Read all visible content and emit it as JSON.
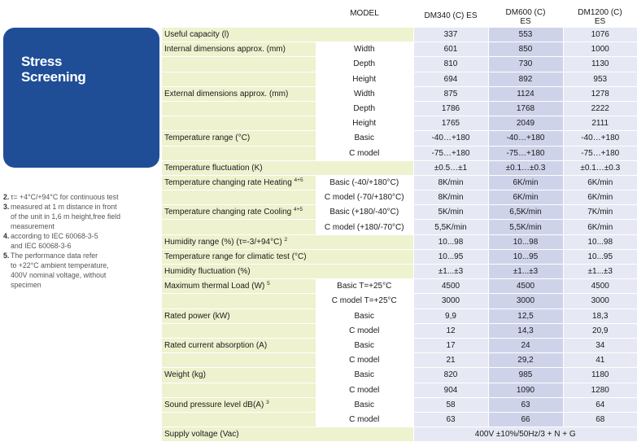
{
  "badge": {
    "title": "Stress\nScreening"
  },
  "header": {
    "model": "MODEL",
    "models": [
      "DM340 (C) ES",
      "DM600 (C)\nES",
      "DM1200 (C)\nES"
    ]
  },
  "notes": [
    {
      "num": "2.",
      "text": "τ= +4°C/+94°C for continuous test"
    },
    {
      "num": "3.",
      "text": "measured at 1 m distance in front\nof the unit in 1,6 m height,free field\nmeasurement"
    },
    {
      "num": "4.",
      "text": "according to IEC 60068-3-5\nand IEC 60068-3-6"
    },
    {
      "num": "5.",
      "text": "The performance data refer\nto +22°C ambient temperature,\n400V nominal voltage, without\nspecimen"
    }
  ],
  "rows": [
    {
      "label": "Useful capacity (l)",
      "sub": "",
      "values": [
        "337",
        "553",
        "1076"
      ]
    },
    {
      "label": "Internal dimensions approx. (mm)",
      "sub": "Width",
      "values": [
        "601",
        "850",
        "1000"
      ]
    },
    {
      "label": "",
      "sub": "Depth",
      "values": [
        "810",
        "730",
        "1130"
      ]
    },
    {
      "label": "",
      "sub": "Height",
      "values": [
        "694",
        "892",
        "953"
      ]
    },
    {
      "label": "External dimensions approx. (mm)",
      "sub": "Width",
      "values": [
        "875",
        "1124",
        "1278"
      ]
    },
    {
      "label": "",
      "sub": "Depth",
      "values": [
        "1786",
        "1768",
        "2222"
      ]
    },
    {
      "label": "",
      "sub": "Height",
      "values": [
        "1765",
        "2049",
        "2111"
      ]
    },
    {
      "label": "Temperature range (°C)",
      "sub": "Basic",
      "values": [
        "-40…+180",
        "-40…+180",
        "-40…+180"
      ]
    },
    {
      "label": "",
      "sub": "C model",
      "values": [
        "-75…+180",
        "-75…+180",
        "-75…+180"
      ]
    },
    {
      "label": "Temperature fluctuation (K)",
      "sub": "",
      "values": [
        "±0.5…±1",
        "±0.1…±0.3",
        "±0.1…±0.3"
      ]
    },
    {
      "label": "Temperature changing rate Heating",
      "sup": "4+5",
      "sub": "Basic (-40/+180°C)",
      "values": [
        "8K/min",
        "6K/min",
        "6K/min"
      ]
    },
    {
      "label": "",
      "sub": "C model (-70/+180°C)",
      "values": [
        "8K/min",
        "6K/min",
        "6K/min"
      ]
    },
    {
      "label": "Temperature changing rate Cooling",
      "sup": "4+5",
      "sub": "Basic (+180/-40°C)",
      "values": [
        "5K/min",
        "6,5K/min",
        "7K/min"
      ]
    },
    {
      "label": "",
      "sub": "C model (+180/-70°C)",
      "values": [
        "5,5K/min",
        "5,5K/min",
        "6K/min"
      ]
    },
    {
      "label": "Humidity range (%) (τ=-3/+94°C)",
      "sup": "2",
      "sub": "",
      "values": [
        "10...98",
        "10...98",
        "10...98"
      ]
    },
    {
      "label": "Temperature range for climatic test (°C)",
      "sub": "",
      "values": [
        "10...95",
        "10...95",
        "10...95"
      ]
    },
    {
      "label": "Humidity fluctuation (%)",
      "sub": "",
      "values": [
        "±1...±3",
        "±1...±3",
        "±1...±3"
      ]
    },
    {
      "label": "Maximum thermal Load (W)",
      "sup": "5",
      "sub": "Basic T=+25°C",
      "values": [
        "4500",
        "4500",
        "4500"
      ]
    },
    {
      "label": "",
      "sub": "C model T=+25°C",
      "values": [
        "3000",
        "3000",
        "3000"
      ]
    },
    {
      "label": "Rated power (kW)",
      "sub": "Basic",
      "values": [
        "9,9",
        "12,5",
        "18,3"
      ]
    },
    {
      "label": "",
      "sub": "C model",
      "values": [
        "12",
        "14,3",
        "20,9"
      ]
    },
    {
      "label": "Rated current absorption (A)",
      "sub": "Basic",
      "values": [
        "17",
        "24",
        "34"
      ]
    },
    {
      "label": "",
      "sub": "C model",
      "values": [
        "21",
        "29,2",
        "41"
      ]
    },
    {
      "label": "Weight (kg)",
      "sub": "Basic",
      "values": [
        "820",
        "985",
        "1180"
      ]
    },
    {
      "label": "",
      "sub": "C model",
      "values": [
        "904",
        "1090",
        "1280"
      ]
    },
    {
      "label": "Sound pressure level dB(A)",
      "sup": "3",
      "sub": "Basic",
      "values": [
        "58",
        "63",
        "64"
      ]
    },
    {
      "label": "",
      "sub": "C model",
      "values": [
        "63",
        "66",
        "68"
      ]
    },
    {
      "label": "Supply voltage (Vac)",
      "sub": "",
      "span": "400V ±10%/50Hz/3 + N + G"
    }
  ]
}
